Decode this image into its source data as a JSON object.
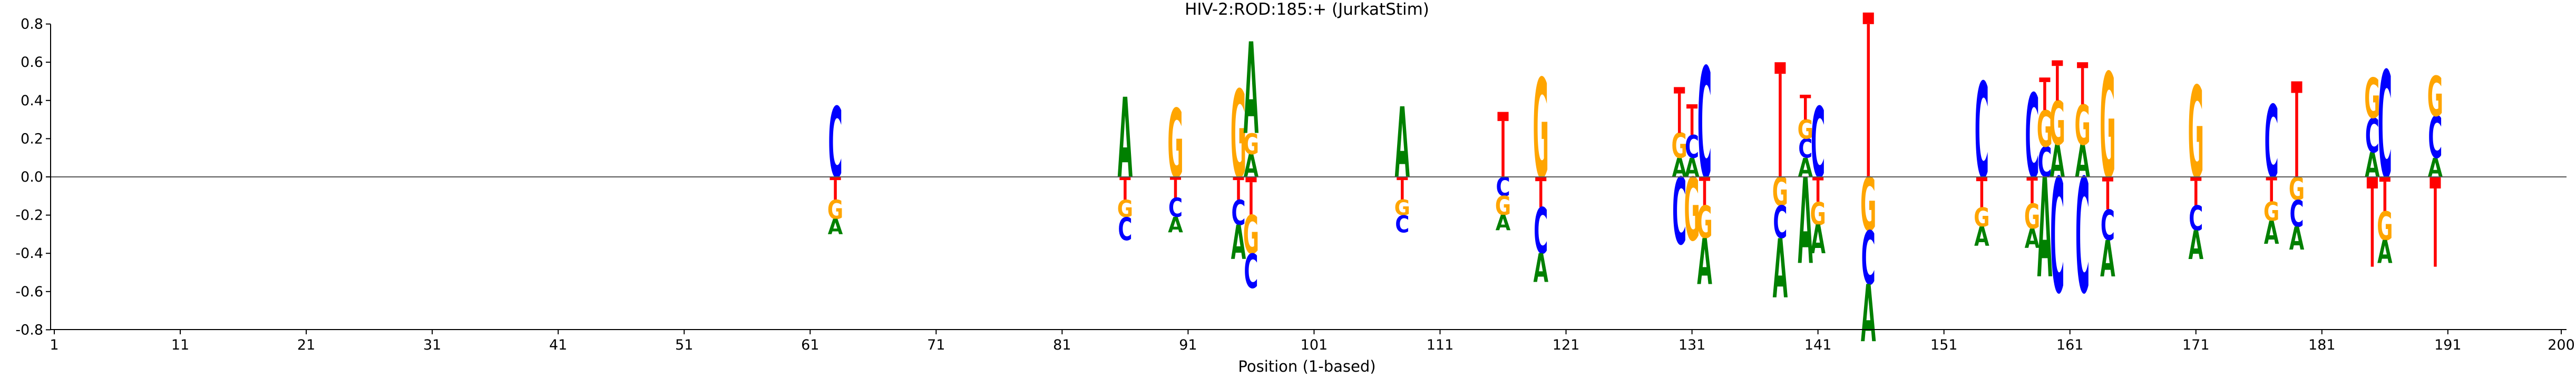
{
  "chart_data": {
    "type": "sequence-logo",
    "title": "HIV-2:ROD:185:+  (JurkatStim)",
    "xlabel": "Position (1-based)",
    "ylabel": "",
    "xlim": [
      1,
      200
    ],
    "ylim": [
      -0.88,
      0.88
    ],
    "x_ticks": [
      1,
      11,
      21,
      31,
      41,
      51,
      61,
      71,
      81,
      91,
      101,
      111,
      121,
      131,
      141,
      151,
      161,
      171,
      181,
      191,
      200
    ],
    "y_ticks": [
      0.8,
      0.6,
      0.4,
      0.2,
      0.0,
      -0.2,
      -0.4,
      -0.6,
      -0.8
    ],
    "colors": {
      "A": "#008000",
      "C": "#0000ff",
      "G": "#ffa500",
      "T": "#ff0000"
    },
    "positions": [
      {
        "pos": 63,
        "above": [
          {
            "b": "C",
            "h": 0.37
          }
        ],
        "below": [
          {
            "b": "T",
            "h": 0.12
          },
          {
            "b": "G",
            "h": 0.1
          },
          {
            "b": "A",
            "h": 0.08
          }
        ]
      },
      {
        "pos": 86,
        "above": [
          {
            "b": "A",
            "h": 0.42
          }
        ],
        "below": [
          {
            "b": "T",
            "h": 0.12
          },
          {
            "b": "G",
            "h": 0.09
          },
          {
            "b": "C",
            "h": 0.12
          }
        ]
      },
      {
        "pos": 90,
        "above": [
          {
            "b": "G",
            "h": 0.36
          }
        ],
        "below": [
          {
            "b": "T",
            "h": 0.11
          },
          {
            "b": "C",
            "h": 0.1
          },
          {
            "b": "A",
            "h": 0.08
          }
        ]
      },
      {
        "pos": 95,
        "above": [
          {
            "b": "G",
            "h": 0.46
          }
        ],
        "below": [
          {
            "b": "T",
            "h": 0.12
          },
          {
            "b": "C",
            "h": 0.13
          },
          {
            "b": "A",
            "h": 0.18
          }
        ]
      },
      {
        "pos": 96,
        "above": [
          {
            "b": "A",
            "h": 0.12
          },
          {
            "b": "G",
            "h": 0.11
          },
          {
            "b": "A",
            "h": 0.48
          }
        ],
        "below": [
          {
            "b": "T",
            "h": 0.2
          },
          {
            "b": "G",
            "h": 0.2
          },
          {
            "b": "C",
            "h": 0.18
          }
        ]
      },
      {
        "pos": 108,
        "above": [
          {
            "b": "A",
            "h": 0.37
          }
        ],
        "below": [
          {
            "b": "T",
            "h": 0.12
          },
          {
            "b": "G",
            "h": 0.08
          },
          {
            "b": "C",
            "h": 0.09
          }
        ]
      },
      {
        "pos": 116,
        "above": [
          {
            "b": "T",
            "h": 0.34
          }
        ],
        "below": [
          {
            "b": "C",
            "h": 0.1
          },
          {
            "b": "G",
            "h": 0.1
          },
          {
            "b": "A",
            "h": 0.08
          }
        ]
      },
      {
        "pos": 119,
        "above": [
          {
            "b": "G",
            "h": 0.52
          }
        ],
        "below": [
          {
            "b": "T",
            "h": 0.16
          },
          {
            "b": "C",
            "h": 0.24
          },
          {
            "b": "A",
            "h": 0.15
          }
        ]
      },
      {
        "pos": 130,
        "above": [
          {
            "b": "A",
            "h": 0.1
          },
          {
            "b": "G",
            "h": 0.13
          },
          {
            "b": "T",
            "h": 0.24
          }
        ],
        "below": [
          {
            "b": "C",
            "h": 0.35
          }
        ]
      },
      {
        "pos": 131,
        "above": [
          {
            "b": "A",
            "h": 0.1
          },
          {
            "b": "C",
            "h": 0.12
          },
          {
            "b": "T",
            "h": 0.16
          }
        ],
        "below": [
          {
            "b": "G",
            "h": 0.33
          }
        ]
      },
      {
        "pos": 132,
        "above": [
          {
            "b": "C",
            "h": 0.58
          }
        ],
        "below": [
          {
            "b": "T",
            "h": 0.15
          },
          {
            "b": "G",
            "h": 0.17
          },
          {
            "b": "A",
            "h": 0.24
          }
        ]
      },
      {
        "pos": 138,
        "above": [
          {
            "b": "T",
            "h": 0.6
          }
        ],
        "below": [
          {
            "b": "G",
            "h": 0.15
          },
          {
            "b": "C",
            "h": 0.17
          },
          {
            "b": "A",
            "h": 0.31
          }
        ]
      },
      {
        "pos": 140,
        "above": [
          {
            "b": "A",
            "h": 0.1
          },
          {
            "b": "C",
            "h": 0.1
          },
          {
            "b": "G",
            "h": 0.1
          },
          {
            "b": "T",
            "h": 0.13
          }
        ],
        "below": [
          {
            "b": "A",
            "h": 0.45
          }
        ]
      },
      {
        "pos": 141,
        "above": [
          {
            "b": "C",
            "h": 0.37
          }
        ],
        "below": [
          {
            "b": "T",
            "h": 0.13
          },
          {
            "b": "G",
            "h": 0.12
          },
          {
            "b": "A",
            "h": 0.15
          }
        ]
      },
      {
        "pos": 145,
        "above": [
          {
            "b": "T",
            "h": 0.86
          }
        ],
        "below": [
          {
            "b": "G",
            "h": 0.28
          },
          {
            "b": "C",
            "h": 0.28
          },
          {
            "b": "A",
            "h": 0.3
          }
        ]
      },
      {
        "pos": 154,
        "above": [
          {
            "b": "C",
            "h": 0.5
          }
        ],
        "below": [
          {
            "b": "T",
            "h": 0.16
          },
          {
            "b": "G",
            "h": 0.1
          },
          {
            "b": "A",
            "h": 0.1
          }
        ]
      },
      {
        "pos": 158,
        "above": [
          {
            "b": "C",
            "h": 0.44
          }
        ],
        "below": [
          {
            "b": "T",
            "h": 0.14
          },
          {
            "b": "G",
            "h": 0.13
          },
          {
            "b": "A",
            "h": 0.1
          }
        ]
      },
      {
        "pos": 159,
        "above": [
          {
            "b": "C",
            "h": 0.16
          },
          {
            "b": "G",
            "h": 0.19
          },
          {
            "b": "T",
            "h": 0.17
          }
        ],
        "below": [
          {
            "b": "A",
            "h": 0.52
          }
        ]
      },
      {
        "pos": 160,
        "above": [
          {
            "b": "A",
            "h": 0.17
          },
          {
            "b": "G",
            "h": 0.23
          },
          {
            "b": "T",
            "h": 0.21
          }
        ],
        "below": [
          {
            "b": "C",
            "h": 0.6
          }
        ]
      },
      {
        "pos": 162,
        "above": [
          {
            "b": "A",
            "h": 0.17
          },
          {
            "b": "G",
            "h": 0.21
          },
          {
            "b": "T",
            "h": 0.22
          }
        ],
        "below": [
          {
            "b": "C",
            "h": 0.6
          }
        ]
      },
      {
        "pos": 164,
        "above": [
          {
            "b": "G",
            "h": 0.55
          }
        ],
        "below": [
          {
            "b": "T",
            "h": 0.17
          },
          {
            "b": "C",
            "h": 0.16
          },
          {
            "b": "A",
            "h": 0.19
          }
        ]
      },
      {
        "pos": 171,
        "above": [
          {
            "b": "G",
            "h": 0.48
          }
        ],
        "below": [
          {
            "b": "T",
            "h": 0.15
          },
          {
            "b": "C",
            "h": 0.13
          },
          {
            "b": "A",
            "h": 0.15
          }
        ]
      },
      {
        "pos": 177,
        "above": [
          {
            "b": "C",
            "h": 0.38
          }
        ],
        "below": [
          {
            "b": "T",
            "h": 0.13
          },
          {
            "b": "G",
            "h": 0.1
          },
          {
            "b": "A",
            "h": 0.12
          }
        ]
      },
      {
        "pos": 179,
        "above": [
          {
            "b": "T",
            "h": 0.5
          }
        ],
        "below": [
          {
            "b": "G",
            "h": 0.12
          },
          {
            "b": "C",
            "h": 0.14
          },
          {
            "b": "A",
            "h": 0.12
          }
        ]
      },
      {
        "pos": 185,
        "above": [
          {
            "b": "A",
            "h": 0.13
          },
          {
            "b": "C",
            "h": 0.18
          },
          {
            "b": "G",
            "h": 0.21
          }
        ],
        "below": [
          {
            "b": "T",
            "h": 0.47
          }
        ]
      },
      {
        "pos": 186,
        "above": [
          {
            "b": "C",
            "h": 0.56
          }
        ],
        "below": [
          {
            "b": "T",
            "h": 0.18
          },
          {
            "b": "G",
            "h": 0.15
          },
          {
            "b": "A",
            "h": 0.12
          }
        ]
      },
      {
        "pos": 190,
        "above": [
          {
            "b": "A",
            "h": 0.1
          },
          {
            "b": "C",
            "h": 0.22
          },
          {
            "b": "G",
            "h": 0.21
          }
        ],
        "below": [
          {
            "b": "T",
            "h": 0.47
          }
        ]
      }
    ]
  }
}
